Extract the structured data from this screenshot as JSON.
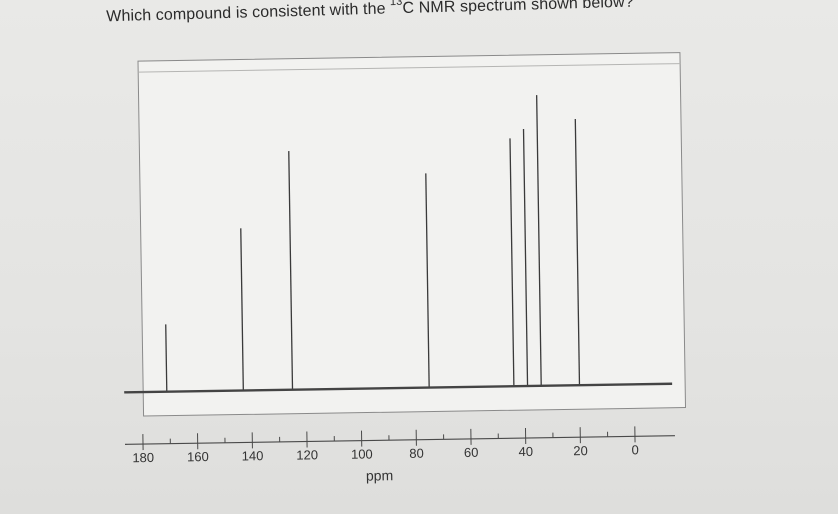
{
  "question": {
    "prefix": "Which compound is consistent with the",
    "isotope": "13",
    "suffix": "C NMR spectrum shown below?"
  },
  "chart_data": {
    "type": "bar",
    "xlabel": "ppm",
    "xlim": [
      180,
      0
    ],
    "ylim": [
      0,
      1
    ],
    "ticks": [
      {
        "value": 180,
        "label": "180"
      },
      {
        "value": 160,
        "label": "160"
      },
      {
        "value": 140,
        "label": "140"
      },
      {
        "value": 120,
        "label": "120"
      },
      {
        "value": 100,
        "label": "100"
      },
      {
        "value": 80,
        "label": "80"
      },
      {
        "value": 60,
        "label": "60"
      },
      {
        "value": 40,
        "label": "40"
      },
      {
        "value": 20,
        "label": "20"
      },
      {
        "value": 0,
        "label": "0"
      }
    ],
    "peaks": [
      {
        "ppm": 171,
        "intensity": 0.22
      },
      {
        "ppm": 143,
        "intensity": 0.53
      },
      {
        "ppm": 125,
        "intensity": 0.78
      },
      {
        "ppm": 75,
        "intensity": 0.7
      },
      {
        "ppm": 44,
        "intensity": 0.81
      },
      {
        "ppm": 39,
        "intensity": 0.84
      },
      {
        "ppm": 34,
        "intensity": 0.95
      },
      {
        "ppm": 20,
        "intensity": 0.87
      }
    ],
    "colors": {
      "axis": "#4a4a4a",
      "peak": "#3a3a3a",
      "baseline": "#444444",
      "frame": "#8a8a8a"
    }
  }
}
